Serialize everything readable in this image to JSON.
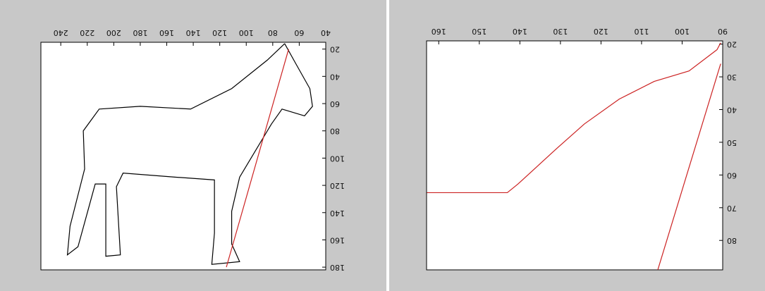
{
  "chart_data": [
    {
      "type": "line",
      "xlim": [
        40,
        255
      ],
      "ylim": [
        15,
        182
      ],
      "x_reverse": true,
      "y_reverse": true,
      "xticks": [
        40,
        60,
        80,
        100,
        120,
        140,
        160,
        180,
        200,
        220,
        240
      ],
      "yticks": [
        20,
        40,
        60,
        80,
        100,
        120,
        140,
        160,
        180
      ],
      "series": [
        {
          "color": "#000000",
          "x": [
            71,
            63,
            52,
            50,
            56,
            73,
            81,
            97,
            105,
            111,
            111,
            105,
            126,
            124,
            124,
            153,
            193,
            198,
            195,
            206,
            206,
            214,
            227,
            235,
            233,
            222,
            223,
            211,
            180,
            142,
            111,
            84,
            71
          ],
          "values": [
            16,
            30,
            49,
            62,
            69,
            64,
            75,
            101,
            114,
            139,
            163,
            176,
            178,
            155,
            116,
            114,
            111,
            121,
            171,
            172,
            119,
            119,
            165,
            171,
            150,
            108,
            80,
            64,
            62,
            64,
            49,
            28,
            16
          ]
        },
        {
          "color": "#cc2222",
          "x": [
            68,
            115
          ],
          "values": [
            20,
            180
          ]
        }
      ]
    },
    {
      "type": "line",
      "xlim": [
        90,
        163
      ],
      "ylim": [
        19,
        89
      ],
      "x_reverse": true,
      "y_reverse": true,
      "xticks": [
        90,
        100,
        110,
        120,
        130,
        140,
        150,
        160
      ],
      "yticks": [
        20,
        30,
        40,
        50,
        60,
        70,
        80
      ],
      "series": [
        {
          "color": "#cc2222",
          "x": [
            162.9,
            143.1,
            140.5,
            131,
            124.1,
            115.5,
            106.9,
            98.3,
            91.4,
            90.5
          ],
          "values": [
            65.4,
            65.4,
            62.8,
            52,
            44.4,
            36.8,
            31.4,
            28.2,
            21.7,
            19.6
          ]
        },
        {
          "color": "#cc2222",
          "x": [
            90.5,
            106
          ],
          "values": [
            26,
            89
          ]
        }
      ]
    }
  ]
}
